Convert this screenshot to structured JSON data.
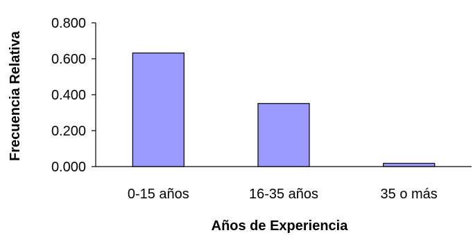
{
  "chart_data": {
    "type": "bar",
    "categories": [
      "0-15 años",
      "16-35 años",
      "35 o más"
    ],
    "values": [
      0.632,
      0.351,
      0.018
    ],
    "xlabel": "Años de Experiencia",
    "ylabel": "Frecuencia Relativa",
    "ylim": [
      0,
      0.8
    ],
    "yticks": [
      "0.000",
      "0.200",
      "0.400",
      "0.600",
      "0.800"
    ],
    "grid": false,
    "legend": "none",
    "bar_color": "#9999ff"
  }
}
